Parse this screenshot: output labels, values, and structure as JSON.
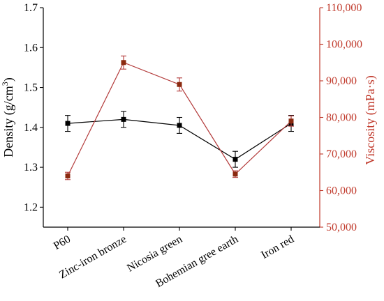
{
  "chart_data": {
    "type": "line",
    "categories": [
      "P60",
      "Zinc-iron bronze",
      "Nicosia green",
      "Bohemian gree earth",
      "Iron red"
    ],
    "series": [
      {
        "axis": "left",
        "color": "#000000",
        "marker_color": "#000000",
        "values": [
          1.41,
          1.42,
          1.405,
          1.32,
          1.41
        ],
        "errors": [
          0.02,
          0.02,
          0.02,
          0.02,
          0.02
        ]
      },
      {
        "axis": "right",
        "color": "#b33a3a",
        "marker_color": "#8b2a10",
        "values": [
          64000,
          95000,
          89000,
          64500,
          79000
        ],
        "errors": [
          1000,
          1800,
          1800,
          900,
          1400
        ]
      }
    ],
    "left_axis": {
      "label_main": "Density (g/cm",
      "label_sup": "3",
      "label_end": ")",
      "ylim": [
        1.15,
        1.7
      ],
      "ticks": [
        1.2,
        1.3,
        1.4,
        1.5,
        1.6,
        1.7
      ],
      "tick_labels": [
        "1.2",
        "1.3",
        "1.4",
        "1.5",
        "1.6",
        "1.7"
      ],
      "color": "#000000"
    },
    "right_axis": {
      "label": "Viscosity (mPa·s)",
      "ylim": [
        50000,
        110000
      ],
      "ticks": [
        50000,
        60000,
        70000,
        80000,
        90000,
        100000,
        110000
      ],
      "tick_labels": [
        "50,000",
        "60,000",
        "70,000",
        "80,000",
        "90,000",
        "100,000",
        "110,000"
      ],
      "color": "#c0392b"
    },
    "grid": false,
    "legend": "none"
  }
}
